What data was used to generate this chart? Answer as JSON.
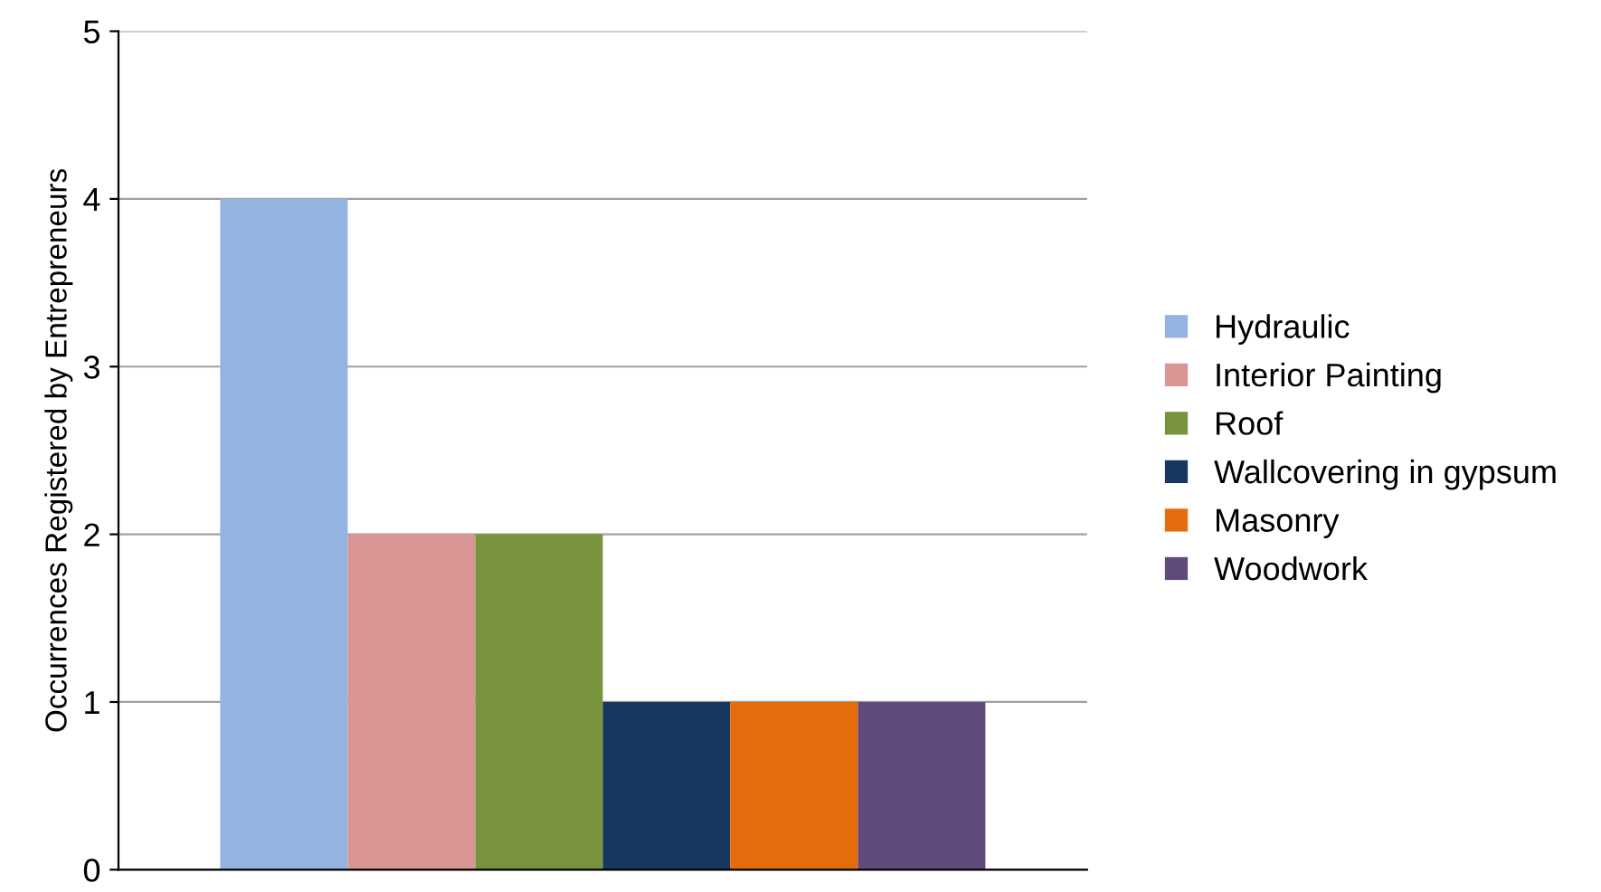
{
  "chart_data": {
    "type": "bar",
    "ylabel": "Occurrences Registered by Entrepreneurs",
    "categories": [
      null
    ],
    "series": [
      {
        "name": "Hydraulic",
        "color": "#95b3e0",
        "values": [
          4
        ]
      },
      {
        "name": "Interior Painting",
        "color": "#d99694",
        "values": [
          2
        ]
      },
      {
        "name": "Roof",
        "color": "#77933c",
        "values": [
          2
        ]
      },
      {
        "name": "Wallcovering in gypsum",
        "color": "#17375e",
        "values": [
          1
        ]
      },
      {
        "name": "Masonry",
        "color": "#e46c0a",
        "values": [
          1
        ]
      },
      {
        "name": "Woodwork",
        "color": "#604a7b",
        "values": [
          1
        ]
      }
    ],
    "ylim": [
      0,
      5
    ],
    "yticks": [
      0,
      1,
      2,
      3,
      4,
      5
    ],
    "grid": "y",
    "legend": "right",
    "tick_labels": "y"
  }
}
